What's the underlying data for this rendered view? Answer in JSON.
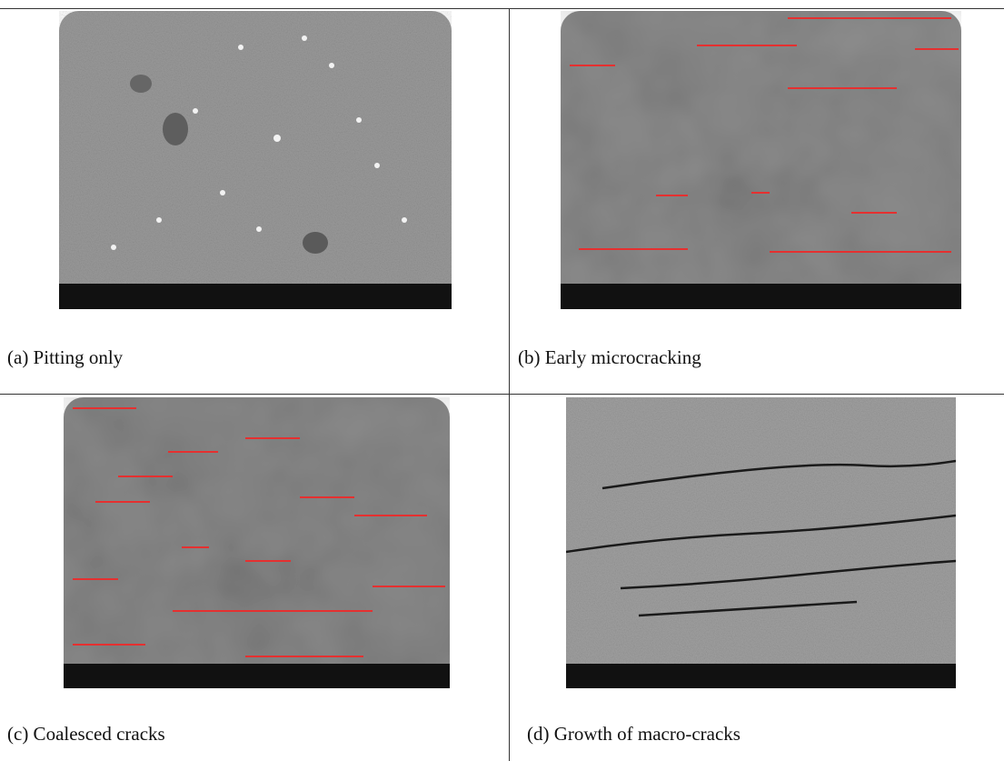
{
  "panels": [
    {
      "caption": "(a) Pitting only"
    },
    {
      "caption": "(b) Early microcracking"
    },
    {
      "caption": "(c) Coalesced cracks"
    },
    {
      "caption": "(d) Growth of macro-cracks"
    }
  ]
}
